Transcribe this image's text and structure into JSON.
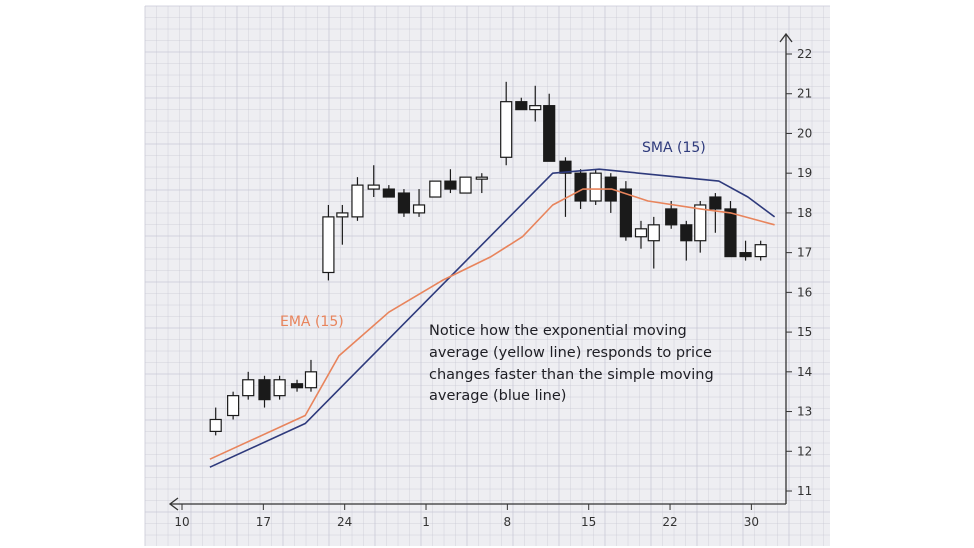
{
  "chart_data": {
    "type": "candlestick",
    "title": "",
    "xlabel": "",
    "ylabel": "",
    "grid": true,
    "x_ticks": [
      {
        "label": "10",
        "x": 0
      },
      {
        "label": "17",
        "x": 7
      },
      {
        "label": "24",
        "x": 14
      },
      {
        "label": "1",
        "x": 21
      },
      {
        "label": "8",
        "x": 28
      },
      {
        "label": "15",
        "x": 35
      },
      {
        "label": "22",
        "x": 42
      },
      {
        "label": "30",
        "x": 49
      }
    ],
    "xlim": [
      0,
      52
    ],
    "y_ticks": [
      11,
      12,
      13,
      14,
      15,
      16,
      17,
      18,
      19,
      20,
      21,
      22
    ],
    "ylim": [
      10.7,
      22.5
    ],
    "candles": [
      {
        "x": 2.9,
        "open": 12.5,
        "high": 13.1,
        "low": 12.4,
        "close": 12.8
      },
      {
        "x": 4.4,
        "open": 12.9,
        "high": 13.5,
        "low": 12.8,
        "close": 13.4
      },
      {
        "x": 5.7,
        "open": 13.4,
        "high": 14.0,
        "low": 13.3,
        "close": 13.8
      },
      {
        "x": 7.1,
        "open": 13.8,
        "high": 13.9,
        "low": 13.1,
        "close": 13.3
      },
      {
        "x": 8.4,
        "open": 13.4,
        "high": 13.9,
        "low": 13.3,
        "close": 13.8
      },
      {
        "x": 9.9,
        "open": 13.7,
        "high": 13.8,
        "low": 13.5,
        "close": 13.6
      },
      {
        "x": 11.1,
        "open": 13.6,
        "high": 14.3,
        "low": 13.5,
        "close": 14.0
      },
      {
        "x": 12.6,
        "open": 16.5,
        "high": 18.2,
        "low": 16.3,
        "close": 17.9
      },
      {
        "x": 13.8,
        "open": 17.9,
        "high": 18.2,
        "low": 17.2,
        "close": 18.0
      },
      {
        "x": 15.1,
        "open": 17.9,
        "high": 18.9,
        "low": 17.8,
        "close": 18.7
      },
      {
        "x": 16.5,
        "open": 18.6,
        "high": 19.2,
        "low": 18.4,
        "close": 18.7
      },
      {
        "x": 17.8,
        "open": 18.6,
        "high": 18.7,
        "low": 18.4,
        "close": 18.4
      },
      {
        "x": 19.1,
        "open": 18.5,
        "high": 18.6,
        "low": 17.9,
        "close": 18.0
      },
      {
        "x": 20.4,
        "open": 18.0,
        "high": 18.6,
        "low": 17.9,
        "close": 18.2
      },
      {
        "x": 21.8,
        "open": 18.4,
        "high": 18.8,
        "low": 18.4,
        "close": 18.8
      },
      {
        "x": 23.1,
        "open": 18.8,
        "high": 19.1,
        "low": 18.5,
        "close": 18.6
      },
      {
        "x": 24.4,
        "open": 18.5,
        "high": 18.9,
        "low": 18.5,
        "close": 18.9
      },
      {
        "x": 25.8,
        "open": 18.9,
        "high": 19.0,
        "low": 18.5,
        "close": 18.9
      },
      {
        "x": 27.9,
        "open": 19.4,
        "high": 21.3,
        "low": 19.2,
        "close": 20.8
      },
      {
        "x": 29.2,
        "open": 20.8,
        "high": 20.9,
        "low": 20.6,
        "close": 20.6
      },
      {
        "x": 30.4,
        "open": 20.6,
        "high": 21.2,
        "low": 20.3,
        "close": 20.7
      },
      {
        "x": 31.6,
        "open": 20.7,
        "high": 21.0,
        "low": 19.3,
        "close": 19.3
      },
      {
        "x": 33.0,
        "open": 19.3,
        "high": 19.4,
        "low": 17.9,
        "close": 19.0
      },
      {
        "x": 34.3,
        "open": 19.0,
        "high": 19.1,
        "low": 18.1,
        "close": 18.3
      },
      {
        "x": 35.6,
        "open": 18.3,
        "high": 19.1,
        "low": 18.2,
        "close": 19.0
      },
      {
        "x": 36.9,
        "open": 18.9,
        "high": 19.0,
        "low": 18.0,
        "close": 18.3
      },
      {
        "x": 38.2,
        "open": 18.6,
        "high": 18.8,
        "low": 17.3,
        "close": 17.4
      },
      {
        "x": 39.5,
        "open": 17.4,
        "high": 17.8,
        "low": 17.1,
        "close": 17.6
      },
      {
        "x": 40.6,
        "open": 17.3,
        "high": 17.9,
        "low": 16.6,
        "close": 17.7
      },
      {
        "x": 42.1,
        "open": 18.1,
        "high": 18.3,
        "low": 17.6,
        "close": 17.7
      },
      {
        "x": 43.4,
        "open": 17.7,
        "high": 17.8,
        "low": 16.8,
        "close": 17.3
      },
      {
        "x": 44.6,
        "open": 17.3,
        "high": 18.3,
        "low": 17.0,
        "close": 18.2
      },
      {
        "x": 45.9,
        "open": 18.4,
        "high": 18.5,
        "low": 17.5,
        "close": 18.1
      },
      {
        "x": 47.2,
        "open": 18.1,
        "high": 18.3,
        "low": 16.9,
        "close": 16.9
      },
      {
        "x": 48.5,
        "open": 17.0,
        "high": 17.3,
        "low": 16.8,
        "close": 16.9
      },
      {
        "x": 49.8,
        "open": 16.9,
        "high": 17.3,
        "low": 16.8,
        "close": 17.2
      }
    ],
    "series": [
      {
        "name": "SMA (15)",
        "color": "#2e3a7c",
        "x": [
          2.4,
          10.6,
          31.9,
          35.9,
          46.2,
          48.7,
          51.0
        ],
        "y": [
          11.6,
          12.7,
          19.0,
          19.1,
          18.8,
          18.4,
          17.9
        ]
      },
      {
        "name": "EMA (15)",
        "color": "#e8845c",
        "x": [
          2.4,
          10.6,
          13.5,
          17.8,
          22.4,
          26.6,
          29.3,
          31.9,
          34.5,
          37.0,
          40.1,
          44.6,
          47.2,
          51.0
        ],
        "y": [
          11.8,
          12.9,
          14.4,
          15.5,
          16.3,
          16.9,
          17.4,
          18.2,
          18.6,
          18.6,
          18.3,
          18.1,
          18.0,
          17.7
        ]
      }
    ],
    "annotation": [
      "Notice how the exponential moving",
      "average (yellow line) responds to price",
      "changes faster than the simple moving",
      "average (blue line)"
    ]
  }
}
